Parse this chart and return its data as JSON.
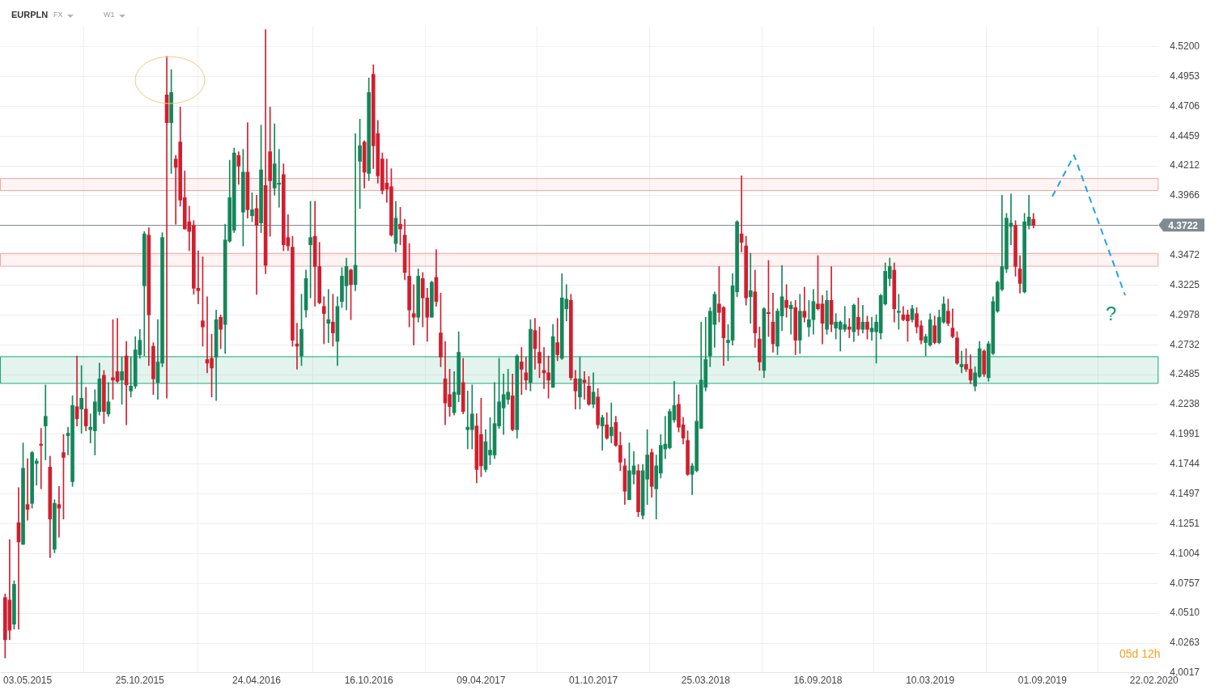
{
  "chart_data": {
    "type": "candlestick",
    "title": "EURPLN",
    "annotations": [
      "FX",
      "W1",
      "05d 12h",
      "?"
    ],
    "x": [
      "2015-03-29",
      "2015-04-05",
      "2015-04-12",
      "2015-04-19",
      "2015-04-26",
      "2015-05-03",
      "2015-05-10",
      "2015-05-17",
      "2015-05-24",
      "2015-05-31",
      "2015-06-07",
      "2015-06-14",
      "2015-06-21",
      "2015-06-28",
      "2015-07-05",
      "2015-07-12",
      "2015-07-19",
      "2015-07-26",
      "2015-08-02",
      "2015-08-09",
      "2015-08-16",
      "2015-08-23",
      "2015-08-30",
      "2015-09-06",
      "2015-09-13",
      "2015-09-20",
      "2015-09-27",
      "2015-10-04",
      "2015-10-11",
      "2015-10-18",
      "2015-10-25",
      "2015-11-01",
      "2015-11-08",
      "2015-11-15",
      "2015-11-22",
      "2015-11-29",
      "2015-12-06",
      "2015-12-13",
      "2015-12-20",
      "2015-12-27",
      "2016-01-03",
      "2016-01-10",
      "2016-01-17",
      "2016-01-24",
      "2016-01-31",
      "2016-02-07",
      "2016-02-14",
      "2016-02-21",
      "2016-02-28",
      "2016-03-06",
      "2016-03-13",
      "2016-03-20",
      "2016-03-27",
      "2016-04-03",
      "2016-04-10",
      "2016-04-17",
      "2016-04-24",
      "2016-05-01",
      "2016-05-08",
      "2016-05-15",
      "2016-05-22",
      "2016-05-29",
      "2016-06-05",
      "2016-06-12",
      "2016-06-19",
      "2016-06-26",
      "2016-07-03",
      "2016-07-10",
      "2016-07-17",
      "2016-07-24",
      "2016-07-31",
      "2016-08-07",
      "2016-08-14",
      "2016-08-21",
      "2016-08-28",
      "2016-09-04",
      "2016-09-11",
      "2016-09-18",
      "2016-09-25",
      "2016-10-02",
      "2016-10-09",
      "2016-10-16",
      "2016-10-23",
      "2016-10-30",
      "2016-11-06",
      "2016-11-13",
      "2016-11-20",
      "2016-11-27",
      "2016-12-04",
      "2016-12-11",
      "2016-12-18",
      "2016-12-25",
      "2017-01-01",
      "2017-01-08",
      "2017-01-15",
      "2017-01-22",
      "2017-01-29",
      "2017-02-05",
      "2017-02-12",
      "2017-02-19",
      "2017-02-26",
      "2017-03-05",
      "2017-03-12",
      "2017-03-19",
      "2017-03-26",
      "2017-04-02",
      "2017-04-09",
      "2017-04-16",
      "2017-04-23",
      "2017-04-30",
      "2017-05-07",
      "2017-05-14",
      "2017-05-21",
      "2017-05-28",
      "2017-06-04",
      "2017-06-11",
      "2017-06-18",
      "2017-06-25",
      "2017-07-02",
      "2017-07-09",
      "2017-07-16",
      "2017-07-23",
      "2017-07-30",
      "2017-08-06",
      "2017-08-13",
      "2017-08-20",
      "2017-08-27",
      "2017-09-03",
      "2017-09-10",
      "2017-09-17",
      "2017-09-24",
      "2017-10-01",
      "2017-10-08",
      "2017-10-15",
      "2017-10-22",
      "2017-10-29",
      "2017-11-05",
      "2017-11-12",
      "2017-11-19",
      "2017-11-26",
      "2017-12-03",
      "2017-12-10",
      "2017-12-17",
      "2017-12-24",
      "2017-12-31",
      "2018-01-07",
      "2018-01-14",
      "2018-01-21",
      "2018-01-28",
      "2018-02-04",
      "2018-02-11",
      "2018-02-18",
      "2018-02-25",
      "2018-03-04",
      "2018-03-11",
      "2018-03-18",
      "2018-03-25",
      "2018-04-01",
      "2018-04-08",
      "2018-04-15",
      "2018-04-22",
      "2018-04-29",
      "2018-05-06",
      "2018-05-13",
      "2018-05-20",
      "2018-05-27",
      "2018-06-03",
      "2018-06-10",
      "2018-06-17",
      "2018-06-24",
      "2018-07-01",
      "2018-07-08",
      "2018-07-15",
      "2018-07-22",
      "2018-07-29",
      "2018-08-05",
      "2018-08-12",
      "2018-08-19",
      "2018-08-26",
      "2018-09-02",
      "2018-09-09",
      "2018-09-16",
      "2018-09-23",
      "2018-09-30",
      "2018-10-07",
      "2018-10-14",
      "2018-10-21",
      "2018-10-28",
      "2018-11-04",
      "2018-11-11",
      "2018-11-18",
      "2018-11-25",
      "2018-12-02",
      "2018-12-09",
      "2018-12-16",
      "2018-12-23",
      "2018-12-30",
      "2019-01-06",
      "2019-01-13",
      "2019-01-20",
      "2019-01-27",
      "2019-02-03",
      "2019-02-10",
      "2019-02-17",
      "2019-02-24",
      "2019-03-03",
      "2019-03-10",
      "2019-03-17",
      "2019-03-24",
      "2019-03-31",
      "2019-04-07",
      "2019-04-14",
      "2019-04-21",
      "2019-04-28",
      "2019-05-05",
      "2019-05-12",
      "2019-05-19",
      "2019-05-26",
      "2019-06-02",
      "2019-06-09",
      "2019-06-16",
      "2019-06-23",
      "2019-06-30",
      "2019-07-07",
      "2019-07-14",
      "2019-07-21",
      "2019-07-28",
      "2019-08-04",
      "2019-08-11",
      "2019-08-18"
    ],
    "ohlc": [
      [
        4.064,
        4.067,
        4.014,
        4.029
      ],
      [
        4.062,
        4.112,
        4.029,
        4.037
      ],
      [
        4.042,
        4.078,
        4.038,
        4.075
      ],
      [
        4.126,
        4.155,
        4.038,
        4.11
      ],
      [
        4.108,
        4.192,
        4.108,
        4.171
      ],
      [
        4.141,
        4.179,
        4.128,
        4.137
      ],
      [
        4.142,
        4.185,
        4.138,
        4.184
      ],
      [
        4.175,
        4.179,
        4.157,
        4.177
      ],
      [
        4.191,
        4.204,
        4.154,
        4.19
      ],
      [
        4.206,
        4.24,
        4.178,
        4.214
      ],
      [
        4.172,
        4.181,
        4.097,
        4.129
      ],
      [
        4.104,
        4.145,
        4.101,
        4.142
      ],
      [
        4.141,
        4.156,
        4.114,
        4.138
      ],
      [
        4.184,
        4.199,
        4.129,
        4.18
      ],
      [
        4.198,
        4.205,
        4.182,
        4.2
      ],
      [
        4.16,
        4.231,
        4.156,
        4.223
      ],
      [
        4.222,
        4.264,
        4.206,
        4.212
      ],
      [
        4.22,
        4.256,
        4.2,
        4.229
      ],
      [
        4.22,
        4.238,
        4.202,
        4.206
      ],
      [
        4.203,
        4.216,
        4.192,
        4.205
      ],
      [
        4.202,
        4.236,
        4.182,
        4.226
      ],
      [
        4.218,
        4.258,
        4.215,
        4.245
      ],
      [
        4.248,
        4.252,
        4.208,
        4.218
      ],
      [
        4.216,
        4.242,
        4.214,
        4.226
      ],
      [
        4.246,
        4.294,
        4.228,
        4.244
      ],
      [
        4.251,
        4.295,
        4.242,
        4.243
      ],
      [
        4.244,
        4.263,
        4.224,
        4.251
      ],
      [
        4.264,
        4.276,
        4.207,
        4.24
      ],
      [
        4.235,
        4.263,
        4.23,
        4.239
      ],
      [
        4.239,
        4.28,
        4.237,
        4.269
      ],
      [
        4.265,
        4.286,
        4.262,
        4.277
      ],
      [
        4.322,
        4.367,
        4.264,
        4.365
      ],
      [
        4.364,
        4.37,
        4.256,
        4.298
      ],
      [
        4.272,
        4.275,
        4.232,
        4.245
      ],
      [
        4.242,
        4.294,
        4.228,
        4.259
      ],
      [
        4.258,
        4.366,
        4.255,
        4.362
      ],
      [
        4.48,
        4.512,
        4.229,
        4.457
      ],
      [
        4.457,
        4.501,
        4.415,
        4.482
      ],
      [
        4.427,
        4.43,
        4.373,
        4.42
      ],
      [
        4.441,
        4.47,
        4.388,
        4.393
      ],
      [
        4.395,
        4.417,
        4.369,
        4.369
      ],
      [
        4.375,
        4.388,
        4.351,
        4.367
      ],
      [
        4.372,
        4.376,
        4.315,
        4.32
      ],
      [
        4.32,
        4.351,
        4.307,
        4.318
      ],
      [
        4.293,
        4.346,
        4.272,
        4.288
      ],
      [
        4.261,
        4.313,
        4.25,
        4.258
      ],
      [
        4.262,
        4.282,
        4.23,
        4.254
      ],
      [
        4.263,
        4.302,
        4.227,
        4.294
      ],
      [
        4.296,
        4.298,
        4.27,
        4.286
      ],
      [
        4.29,
        4.373,
        4.266,
        4.36
      ],
      [
        4.359,
        4.426,
        4.358,
        4.395
      ],
      [
        4.368,
        4.436,
        4.366,
        4.432
      ],
      [
        4.43,
        4.433,
        4.406,
        4.421
      ],
      [
        4.383,
        4.435,
        4.355,
        4.416
      ],
      [
        4.416,
        4.457,
        4.378,
        4.385
      ],
      [
        4.38,
        4.399,
        4.375,
        4.385
      ],
      [
        4.386,
        4.397,
        4.315,
        4.372
      ],
      [
        4.374,
        4.455,
        4.366,
        4.418
      ],
      [
        4.405,
        4.534,
        4.332,
        4.339
      ],
      [
        4.433,
        4.47,
        4.363,
        4.409
      ],
      [
        4.403,
        4.456,
        4.397,
        4.423
      ],
      [
        4.406,
        4.435,
        4.387,
        4.407
      ],
      [
        4.414,
        4.423,
        4.351,
        4.356
      ],
      [
        4.362,
        4.381,
        4.351,
        4.355
      ],
      [
        4.354,
        4.363,
        4.272,
        4.277
      ],
      [
        4.274,
        4.291,
        4.253,
        4.272
      ],
      [
        4.264,
        4.315,
        4.256,
        4.286
      ],
      [
        4.302,
        4.335,
        4.296,
        4.328
      ],
      [
        4.356,
        4.392,
        4.312,
        4.362
      ],
      [
        4.363,
        4.392,
        4.305,
        4.338
      ],
      [
        4.338,
        4.358,
        4.307,
        4.308
      ],
      [
        4.305,
        4.313,
        4.274,
        4.299
      ],
      [
        4.291,
        4.319,
        4.275,
        4.294
      ],
      [
        4.292,
        4.315,
        4.272,
        4.283
      ],
      [
        4.276,
        4.313,
        4.256,
        4.305
      ],
      [
        4.309,
        4.337,
        4.304,
        4.33
      ],
      [
        4.322,
        4.345,
        4.302,
        4.338
      ],
      [
        4.335,
        4.336,
        4.294,
        4.323
      ],
      [
        4.323,
        4.448,
        4.318,
        4.339
      ],
      [
        4.425,
        4.46,
        4.386,
        4.438
      ],
      [
        4.441,
        4.442,
        4.403,
        4.416
      ],
      [
        4.415,
        4.494,
        4.409,
        4.482
      ],
      [
        4.497,
        4.505,
        4.419,
        4.438
      ],
      [
        4.448,
        4.459,
        4.407,
        4.413
      ],
      [
        4.427,
        4.432,
        4.398,
        4.401
      ],
      [
        4.407,
        4.427,
        4.391,
        4.402
      ],
      [
        4.404,
        4.419,
        4.363,
        4.364
      ],
      [
        4.357,
        4.392,
        4.35,
        4.378
      ],
      [
        4.373,
        4.387,
        4.356,
        4.369
      ],
      [
        4.364,
        4.377,
        4.327,
        4.333
      ],
      [
        4.33,
        4.357,
        4.288,
        4.302
      ],
      [
        4.299,
        4.323,
        4.273,
        4.296
      ],
      [
        4.296,
        4.336,
        4.292,
        4.33
      ],
      [
        4.328,
        4.333,
        4.288,
        4.312
      ],
      [
        4.312,
        4.32,
        4.276,
        4.296
      ],
      [
        4.296,
        4.326,
        4.296,
        4.325
      ],
      [
        4.329,
        4.352,
        4.305,
        4.309
      ],
      [
        4.283,
        4.316,
        4.255,
        4.263
      ],
      [
        4.245,
        4.276,
        4.207,
        4.225
      ],
      [
        4.232,
        4.253,
        4.214,
        4.222
      ],
      [
        4.217,
        4.251,
        4.215,
        4.234
      ],
      [
        4.232,
        4.284,
        4.226,
        4.267
      ],
      [
        4.242,
        4.262,
        4.216,
        4.218
      ],
      [
        4.203,
        4.235,
        4.187,
        4.205
      ],
      [
        4.203,
        4.24,
        4.187,
        4.216
      ],
      [
        4.206,
        4.216,
        4.159,
        4.17
      ],
      [
        4.199,
        4.229,
        4.164,
        4.173
      ],
      [
        4.17,
        4.203,
        4.168,
        4.193
      ],
      [
        4.182,
        4.213,
        4.174,
        4.186
      ],
      [
        4.182,
        4.242,
        4.179,
        4.208
      ],
      [
        4.206,
        4.262,
        4.204,
        4.226
      ],
      [
        4.221,
        4.249,
        4.199,
        4.232
      ],
      [
        4.228,
        4.253,
        4.224,
        4.234
      ],
      [
        4.231,
        4.249,
        4.202,
        4.203
      ],
      [
        4.203,
        4.265,
        4.196,
        4.264
      ],
      [
        4.259,
        4.271,
        4.232,
        4.253
      ],
      [
        4.25,
        4.263,
        4.236,
        4.244
      ],
      [
        4.242,
        4.294,
        4.235,
        4.286
      ],
      [
        4.285,
        4.295,
        4.253,
        4.27
      ],
      [
        4.267,
        4.288,
        4.246,
        4.258
      ],
      [
        4.252,
        4.271,
        4.237,
        4.25
      ],
      [
        4.25,
        4.264,
        4.229,
        4.244
      ],
      [
        4.238,
        4.29,
        4.238,
        4.28
      ],
      [
        4.275,
        4.295,
        4.26,
        4.265
      ],
      [
        4.262,
        4.332,
        4.261,
        4.312
      ],
      [
        4.303,
        4.323,
        4.293,
        4.311
      ],
      [
        4.31,
        4.315,
        4.244,
        4.246
      ],
      [
        4.245,
        4.252,
        4.22,
        4.235
      ],
      [
        4.23,
        4.263,
        4.22,
        4.245
      ],
      [
        4.244,
        4.251,
        4.228,
        4.242
      ],
      [
        4.239,
        4.247,
        4.223,
        4.224
      ],
      [
        4.224,
        4.25,
        4.221,
        4.234
      ],
      [
        4.23,
        4.237,
        4.204,
        4.207
      ],
      [
        4.206,
        4.215,
        4.186,
        4.213
      ],
      [
        4.207,
        4.217,
        4.195,
        4.196
      ],
      [
        4.198,
        4.225,
        4.192,
        4.205
      ],
      [
        4.209,
        4.214,
        4.189,
        4.19
      ],
      [
        4.19,
        4.201,
        4.169,
        4.176
      ],
      [
        4.173,
        4.179,
        4.141,
        4.152
      ],
      [
        4.145,
        4.192,
        4.145,
        4.169
      ],
      [
        4.166,
        4.185,
        4.158,
        4.173
      ],
      [
        4.169,
        4.174,
        4.131,
        4.135
      ],
      [
        4.132,
        4.174,
        4.129,
        4.169
      ],
      [
        4.162,
        4.203,
        4.141,
        4.182
      ],
      [
        4.184,
        4.187,
        4.147,
        4.156
      ],
      [
        4.154,
        4.182,
        4.129,
        4.173
      ],
      [
        4.167,
        4.199,
        4.163,
        4.19
      ],
      [
        4.187,
        4.214,
        4.179,
        4.191
      ],
      [
        4.188,
        4.22,
        4.187,
        4.218
      ],
      [
        4.211,
        4.243,
        4.209,
        4.223
      ],
      [
        4.224,
        4.232,
        4.201,
        4.205
      ],
      [
        4.207,
        4.213,
        4.191,
        4.196
      ],
      [
        4.194,
        4.202,
        4.165,
        4.166
      ],
      [
        4.166,
        4.175,
        4.149,
        4.173
      ],
      [
        4.169,
        4.24,
        4.168,
        4.21
      ],
      [
        4.204,
        4.292,
        4.204,
        4.244
      ],
      [
        4.238,
        4.296,
        4.235,
        4.261
      ],
      [
        4.264,
        4.304,
        4.255,
        4.301
      ],
      [
        4.29,
        4.317,
        4.271,
        4.315
      ],
      [
        4.307,
        4.338,
        4.292,
        4.3
      ],
      [
        4.304,
        4.305,
        4.256,
        4.279
      ],
      [
        4.275,
        4.29,
        4.26,
        4.277
      ],
      [
        4.277,
        4.332,
        4.273,
        4.322
      ],
      [
        4.317,
        4.376,
        4.313,
        4.375
      ],
      [
        4.365,
        4.413,
        4.35,
        4.358
      ],
      [
        4.355,
        4.363,
        4.306,
        4.312
      ],
      [
        4.313,
        4.349,
        4.291,
        4.318
      ],
      [
        4.317,
        4.335,
        4.271,
        4.283
      ],
      [
        4.278,
        4.288,
        4.252,
        4.259
      ],
      [
        4.252,
        4.304,
        4.246,
        4.303
      ],
      [
        4.3,
        4.343,
        4.28,
        4.299
      ],
      [
        4.292,
        4.316,
        4.267,
        4.274
      ],
      [
        4.272,
        4.303,
        4.265,
        4.301
      ],
      [
        4.297,
        4.339,
        4.285,
        4.313
      ],
      [
        4.31,
        4.323,
        4.296,
        4.304
      ],
      [
        4.303,
        4.309,
        4.282,
        4.306
      ],
      [
        4.304,
        4.31,
        4.265,
        4.277
      ],
      [
        4.277,
        4.315,
        4.266,
        4.301
      ],
      [
        4.301,
        4.321,
        4.292,
        4.296
      ],
      [
        4.288,
        4.31,
        4.28,
        4.294
      ],
      [
        4.294,
        4.319,
        4.282,
        4.309
      ],
      [
        4.307,
        4.347,
        4.302,
        4.303
      ],
      [
        4.307,
        4.314,
        4.274,
        4.291
      ],
      [
        4.286,
        4.318,
        4.282,
        4.31
      ],
      [
        4.31,
        4.338,
        4.284,
        4.29
      ],
      [
        4.287,
        4.299,
        4.278,
        4.292
      ],
      [
        4.286,
        4.293,
        4.268,
        4.292
      ],
      [
        4.286,
        4.305,
        4.284,
        4.29
      ],
      [
        4.288,
        4.295,
        4.279,
        4.286
      ],
      [
        4.284,
        4.307,
        4.276,
        4.306
      ],
      [
        4.296,
        4.312,
        4.281,
        4.286
      ],
      [
        4.286,
        4.306,
        4.283,
        4.292
      ],
      [
        4.292,
        4.297,
        4.278,
        4.286
      ],
      [
        4.284,
        4.296,
        4.277,
        4.287
      ],
      [
        4.284,
        4.298,
        4.258,
        4.292
      ],
      [
        4.283,
        4.315,
        4.278,
        4.314
      ],
      [
        4.307,
        4.341,
        4.306,
        4.334
      ],
      [
        4.328,
        4.345,
        4.322,
        4.338
      ],
      [
        4.335,
        4.341,
        4.292,
        4.303
      ],
      [
        4.3,
        4.315,
        4.286,
        4.301
      ],
      [
        4.298,
        4.305,
        4.293,
        4.294
      ],
      [
        4.298,
        4.302,
        4.276,
        4.293
      ],
      [
        4.294,
        4.306,
        4.292,
        4.303
      ],
      [
        4.299,
        4.304,
        4.283,
        4.288
      ],
      [
        4.289,
        4.293,
        4.274,
        4.277
      ],
      [
        4.275,
        4.282,
        4.264,
        4.28
      ],
      [
        4.273,
        4.299,
        4.272,
        4.294
      ],
      [
        4.289,
        4.297,
        4.274,
        4.275
      ],
      [
        4.275,
        4.302,
        4.274,
        4.296
      ],
      [
        4.292,
        4.313,
        4.291,
        4.307
      ],
      [
        4.301,
        4.311,
        4.289,
        4.291
      ],
      [
        4.287,
        4.303,
        4.279,
        4.28
      ],
      [
        4.279,
        4.284,
        4.257,
        4.258
      ],
      [
        4.255,
        4.268,
        4.25,
        4.257
      ],
      [
        4.257,
        4.27,
        4.251,
        4.253
      ],
      [
        4.253,
        4.265,
        4.241,
        4.244
      ],
      [
        4.239,
        4.255,
        4.235,
        4.25
      ],
      [
        4.247,
        4.276,
        4.246,
        4.27
      ],
      [
        4.268,
        4.269,
        4.247,
        4.249
      ],
      [
        4.246,
        4.276,
        4.243,
        4.274
      ],
      [
        4.266,
        4.313,
        4.265,
        4.309
      ],
      [
        4.301,
        4.326,
        4.3,
        4.325
      ],
      [
        4.319,
        4.397,
        4.318,
        4.338
      ],
      [
        4.336,
        4.382,
        4.333,
        4.378
      ],
      [
        4.371,
        4.398,
        4.356,
        4.374
      ],
      [
        4.372,
        4.376,
        4.33,
        4.338
      ],
      [
        4.336,
        4.347,
        4.316,
        4.324
      ],
      [
        4.317,
        4.382,
        4.316,
        4.375
      ],
      [
        4.372,
        4.397,
        4.369,
        4.379
      ],
      [
        4.377,
        4.382,
        4.37,
        4.372
      ]
    ],
    "xlim": [
      "2015-03-21",
      "2020-02-29"
    ],
    "xticks": [
      {
        "value": "2015-05-03",
        "label": "03.05.2015"
      },
      {
        "value": "2015-10-25",
        "label": "25.10.2015"
      },
      {
        "value": "2016-04-24",
        "label": "24.04.2016"
      },
      {
        "value": "2016-10-16",
        "label": "16.10.2016"
      },
      {
        "value": "2017-04-09",
        "label": "09.04.2017"
      },
      {
        "value": "2017-10-01",
        "label": "01.10.2017"
      },
      {
        "value": "2018-03-25",
        "label": "25.03.2018"
      },
      {
        "value": "2018-09-16",
        "label": "16.09.2018"
      },
      {
        "value": "2019-03-10",
        "label": "10.03.2019"
      },
      {
        "value": "2019-09-01",
        "label": "01.09.2019"
      },
      {
        "value": "2020-02-22",
        "label": "22.02.2020"
      }
    ],
    "ylim": [
      4.0017,
      4.537
    ],
    "yticks": [
      4.0017,
      4.0263,
      {
        "value": 4.051,
        "label": "4.0510"
      },
      4.0757,
      4.1004,
      4.1251,
      4.1497,
      4.1744,
      4.1991,
      4.2238,
      4.2485,
      4.2732,
      4.2978,
      4.3225,
      4.3472,
      4.3966,
      4.4212,
      4.4459,
      4.4706,
      4.4953,
      {
        "value": 4.52,
        "label": "4.5200"
      }
    ],
    "ref_lines": [
      {
        "axis": "y",
        "value": 4.3722,
        "label": "4.3722",
        "color": "#7f8a91"
      }
    ],
    "bands": [
      {
        "axis": "y",
        "from": 4.4012,
        "to": 4.4112,
        "color": "#f4a3a3"
      },
      {
        "axis": "y",
        "from": 4.3386,
        "to": 4.3491,
        "color": "#f4a3a3"
      },
      {
        "axis": "y",
        "from": 4.2416,
        "to": 4.2637,
        "color": "#19a778"
      }
    ],
    "grid": true
  }
}
